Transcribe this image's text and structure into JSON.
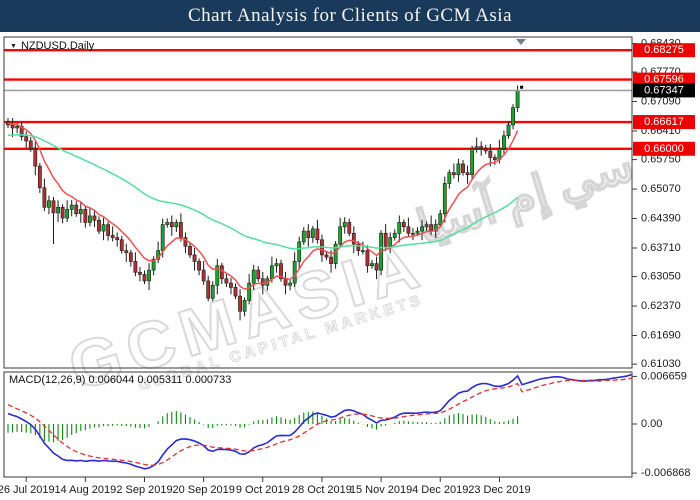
{
  "title": "Chart Analysis for Clients of GCM Asia",
  "symbol": {
    "label": "NZDUSD,Daily"
  },
  "watermark": {
    "text": "GCMASIA",
    "subtext": "GLOBAL CAPITAL MARKETS",
    "secondary": "جي سي إم آسيا"
  },
  "chart_data": {
    "type": "candlestick",
    "symbol": "NZDUSD",
    "timeframe": "Daily",
    "colors": {
      "up": "#1aa32a",
      "down": "#aa3333",
      "wick": "#1a1a1a",
      "level_line": "#ff0000",
      "current_line": "#a0a0a0",
      "ma_fast": "#f25050",
      "ma_slow": "#52e09e",
      "badge_red": "#ee0000",
      "badge_black": "#000000",
      "border": "#3a3a3a",
      "tick_text": "#1a1a1a"
    },
    "y_ticks": [
      0.6843,
      0.6777,
      0.6709,
      0.6641,
      0.6575,
      0.6507,
      0.6439,
      0.6371,
      0.6305,
      0.6237,
      0.6169,
      0.6103
    ],
    "price_levels": [
      {
        "value": 0.68275
      },
      {
        "value": 0.67596
      },
      {
        "value": 0.66617
      },
      {
        "value": 0.66
      }
    ],
    "current_price": {
      "value": 0.67347,
      "label": "0.67347"
    },
    "x_ticks": [
      {
        "label": "26 Jul 2019",
        "i": 4
      },
      {
        "label": "14 Aug 2019",
        "i": 17
      },
      {
        "label": "2 Sep 2019",
        "i": 30
      },
      {
        "label": "20 Sep 2019",
        "i": 43
      },
      {
        "label": "9 Oct 2019",
        "i": 56
      },
      {
        "label": "28 Oct 2019",
        "i": 69
      },
      {
        "label": "15 Nov 2019",
        "i": 82
      },
      {
        "label": "4 Dec 2019",
        "i": 95
      },
      {
        "label": "23 Dec 2019",
        "i": 108
      }
    ],
    "overlays": [
      {
        "name": "ma-fast",
        "type": "EMA",
        "period": 9,
        "seed": 0.666,
        "color": "#f25050"
      },
      {
        "name": "ma-slow",
        "type": "EMA",
        "period": 55,
        "seed": 0.663,
        "color": "#52e09e"
      }
    ],
    "candles": [
      [
        0.6662,
        0.6671,
        0.6648,
        0.6655
      ],
      [
        0.6655,
        0.6671,
        0.6627,
        0.6648
      ],
      [
        0.6648,
        0.6659,
        0.6636,
        0.6652
      ],
      [
        0.6652,
        0.6663,
        0.6619,
        0.6628
      ],
      [
        0.6628,
        0.664,
        0.6602,
        0.6618
      ],
      [
        0.6618,
        0.6627,
        0.6593,
        0.66
      ],
      [
        0.66,
        0.6616,
        0.6539,
        0.656
      ],
      [
        0.656,
        0.6567,
        0.6498,
        0.651
      ],
      [
        0.651,
        0.6531,
        0.6456,
        0.6465
      ],
      [
        0.6465,
        0.6492,
        0.6449,
        0.648
      ],
      [
        0.648,
        0.6489,
        0.638,
        0.6452
      ],
      [
        0.6452,
        0.6481,
        0.6431,
        0.6465
      ],
      [
        0.6465,
        0.6472,
        0.6428,
        0.644
      ],
      [
        0.644,
        0.6481,
        0.6431,
        0.646
      ],
      [
        0.646,
        0.6482,
        0.6444,
        0.647
      ],
      [
        0.647,
        0.6479,
        0.6443,
        0.645
      ],
      [
        0.645,
        0.6476,
        0.6429,
        0.646
      ],
      [
        0.646,
        0.6467,
        0.6418,
        0.643
      ],
      [
        0.643,
        0.6466,
        0.6421,
        0.6445
      ],
      [
        0.6445,
        0.6457,
        0.6419,
        0.6435
      ],
      [
        0.6435,
        0.6444,
        0.6403,
        0.641
      ],
      [
        0.641,
        0.6441,
        0.6389,
        0.6425
      ],
      [
        0.6425,
        0.6432,
        0.6388,
        0.64
      ],
      [
        0.64,
        0.6421,
        0.6386,
        0.6395
      ],
      [
        0.6395,
        0.6407,
        0.6374,
        0.639
      ],
      [
        0.639,
        0.6399,
        0.6358,
        0.6365
      ],
      [
        0.6365,
        0.6381,
        0.6339,
        0.636
      ],
      [
        0.636,
        0.6367,
        0.6328,
        0.634
      ],
      [
        0.634,
        0.6361,
        0.6306,
        0.6315
      ],
      [
        0.6315,
        0.6327,
        0.6294,
        0.631
      ],
      [
        0.631,
        0.6319,
        0.6288,
        0.6295
      ],
      [
        0.6295,
        0.6336,
        0.6274,
        0.632
      ],
      [
        0.632,
        0.6352,
        0.6308,
        0.6345
      ],
      [
        0.6345,
        0.6386,
        0.6336,
        0.6365
      ],
      [
        0.6365,
        0.6439,
        0.6349,
        0.6425
      ],
      [
        0.6425,
        0.6439,
        0.6418,
        0.643
      ],
      [
        0.643,
        0.6446,
        0.6399,
        0.642
      ],
      [
        0.642,
        0.6437,
        0.6408,
        0.643
      ],
      [
        0.643,
        0.6451,
        0.6386,
        0.6395
      ],
      [
        0.6395,
        0.6407,
        0.6359,
        0.6375
      ],
      [
        0.6375,
        0.6384,
        0.6348,
        0.6355
      ],
      [
        0.6355,
        0.6371,
        0.6319,
        0.634
      ],
      [
        0.634,
        0.6347,
        0.6308,
        0.632
      ],
      [
        0.632,
        0.6341,
        0.6286,
        0.6295
      ],
      [
        0.6295,
        0.6307,
        0.6248,
        0.6255
      ],
      [
        0.6255,
        0.6294,
        0.6248,
        0.6285
      ],
      [
        0.6285,
        0.6346,
        0.6264,
        0.633
      ],
      [
        0.633,
        0.6337,
        0.6288,
        0.63
      ],
      [
        0.63,
        0.6311,
        0.6281,
        0.629
      ],
      [
        0.629,
        0.6302,
        0.6264,
        0.628
      ],
      [
        0.628,
        0.6289,
        0.6253,
        0.626
      ],
      [
        0.626,
        0.6276,
        0.6204,
        0.6225
      ],
      [
        0.6225,
        0.6257,
        0.6213,
        0.625
      ],
      [
        0.625,
        0.6311,
        0.6241,
        0.629
      ],
      [
        0.629,
        0.6332,
        0.6274,
        0.632
      ],
      [
        0.632,
        0.6329,
        0.6293,
        0.63
      ],
      [
        0.63,
        0.6316,
        0.6264,
        0.6285
      ],
      [
        0.6285,
        0.6307,
        0.6273,
        0.63
      ],
      [
        0.63,
        0.6351,
        0.6291,
        0.633
      ],
      [
        0.633,
        0.6347,
        0.6314,
        0.6335
      ],
      [
        0.6335,
        0.6344,
        0.6293,
        0.63
      ],
      [
        0.63,
        0.6316,
        0.6264,
        0.6285
      ],
      [
        0.6285,
        0.6297,
        0.6273,
        0.629
      ],
      [
        0.629,
        0.6361,
        0.6281,
        0.634
      ],
      [
        0.634,
        0.6397,
        0.6324,
        0.6385
      ],
      [
        0.6385,
        0.6419,
        0.6378,
        0.641
      ],
      [
        0.641,
        0.6426,
        0.6374,
        0.6395
      ],
      [
        0.6395,
        0.6422,
        0.6383,
        0.6415
      ],
      [
        0.6415,
        0.6436,
        0.6381,
        0.639
      ],
      [
        0.639,
        0.6402,
        0.6339,
        0.6355
      ],
      [
        0.6355,
        0.6364,
        0.6343,
        0.635
      ],
      [
        0.635,
        0.6366,
        0.6314,
        0.6335
      ],
      [
        0.6335,
        0.6387,
        0.6323,
        0.638
      ],
      [
        0.638,
        0.6441,
        0.6371,
        0.642
      ],
      [
        0.642,
        0.6442,
        0.6404,
        0.643
      ],
      [
        0.643,
        0.6439,
        0.6398,
        0.6405
      ],
      [
        0.6405,
        0.6421,
        0.6359,
        0.638
      ],
      [
        0.638,
        0.6387,
        0.6353,
        0.6365
      ],
      [
        0.6365,
        0.6386,
        0.6356,
        0.6365
      ],
      [
        0.6365,
        0.6377,
        0.6314,
        0.633
      ],
      [
        0.633,
        0.6344,
        0.6323,
        0.6335
      ],
      [
        0.6335,
        0.6351,
        0.6299,
        0.632
      ],
      [
        0.632,
        0.6412,
        0.6308,
        0.6405
      ],
      [
        0.6405,
        0.6426,
        0.6366,
        0.6375
      ],
      [
        0.6375,
        0.6407,
        0.6359,
        0.6395
      ],
      [
        0.6395,
        0.6414,
        0.6388,
        0.6405
      ],
      [
        0.6405,
        0.6446,
        0.6384,
        0.643
      ],
      [
        0.643,
        0.6437,
        0.6408,
        0.642
      ],
      [
        0.642,
        0.6441,
        0.6396,
        0.6405
      ],
      [
        0.6405,
        0.6417,
        0.6389,
        0.6405
      ],
      [
        0.6405,
        0.6419,
        0.6398,
        0.641
      ],
      [
        0.641,
        0.6436,
        0.6389,
        0.642
      ],
      [
        0.642,
        0.6432,
        0.6408,
        0.6425
      ],
      [
        0.6425,
        0.6446,
        0.6401,
        0.641
      ],
      [
        0.641,
        0.6437,
        0.6394,
        0.6425
      ],
      [
        0.6425,
        0.6459,
        0.6418,
        0.645
      ],
      [
        0.645,
        0.6536,
        0.6429,
        0.652
      ],
      [
        0.652,
        0.6552,
        0.6508,
        0.6545
      ],
      [
        0.6545,
        0.6566,
        0.6531,
        0.654
      ],
      [
        0.654,
        0.6577,
        0.6524,
        0.6565
      ],
      [
        0.6565,
        0.6574,
        0.6538,
        0.6545
      ],
      [
        0.6545,
        0.6561,
        0.6519,
        0.654
      ],
      [
        0.654,
        0.6607,
        0.6528,
        0.66
      ],
      [
        0.66,
        0.6626,
        0.6591,
        0.6605
      ],
      [
        0.6605,
        0.6617,
        0.6584,
        0.66
      ],
      [
        0.66,
        0.6609,
        0.6588,
        0.6595
      ],
      [
        0.6595,
        0.6611,
        0.6559,
        0.658
      ],
      [
        0.658,
        0.6587,
        0.6563,
        0.6575
      ],
      [
        0.6575,
        0.6621,
        0.6566,
        0.66
      ],
      [
        0.66,
        0.6642,
        0.6584,
        0.663
      ],
      [
        0.663,
        0.6664,
        0.6623,
        0.6655
      ],
      [
        0.6655,
        0.6703,
        0.6645,
        0.6695
      ],
      [
        0.6695,
        0.6746,
        0.6685,
        0.67347
      ]
    ],
    "macd_pane": {
      "label": "MACD(12,26,9) 0.006044 0.005311 0.000733",
      "params": [
        12,
        26,
        9
      ],
      "current_values": [
        0.006044,
        0.005311,
        0.000733
      ],
      "y_ticks": [
        {
          "v": 0.006659,
          "label": "0.006659"
        },
        {
          "v": 0,
          "label": "0.00"
        },
        {
          "v": -0.006868,
          "label": "-0.006868"
        }
      ],
      "colors": {
        "macd_line": "#2b2bd0",
        "signal_line": "#e83030",
        "histogram": "#0d870d"
      },
      "seed_fast": 0.6668,
      "seed_slow": 0.6651,
      "seed_signal": 0.003,
      "extension": {
        "macd": [
          0.0055,
          0.0057,
          0.0059,
          0.0061,
          0.0063,
          0.0064,
          0.0065,
          0.0066,
          0.0066,
          0.0065,
          0.0063,
          0.0062,
          0.0061,
          0.006,
          0.006,
          0.0061,
          0.0061,
          0.0062,
          0.0062,
          0.0063,
          0.0064,
          0.0065,
          0.0066,
          0.0067,
          0.0069
        ],
        "signal": [
          0.0045,
          0.0047,
          0.0049,
          0.0051,
          0.0053,
          0.0055,
          0.0056,
          0.0058,
          0.0059,
          0.006,
          0.0061,
          0.0061,
          0.0061,
          0.0061,
          0.0061,
          0.006,
          0.006,
          0.006,
          0.0061,
          0.0061,
          0.0061,
          0.0062,
          0.0062,
          0.0063,
          0.0064
        ]
      }
    }
  }
}
